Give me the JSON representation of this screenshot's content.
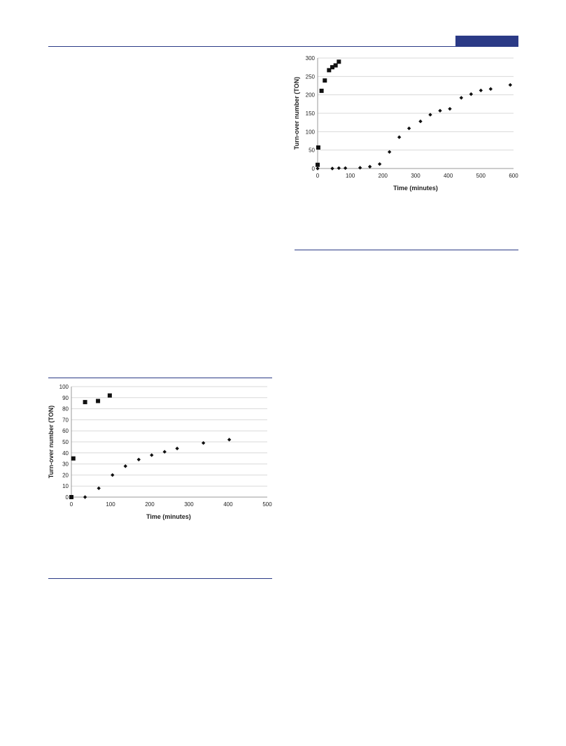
{
  "colors": {
    "accent": "#2b3a86",
    "grid": "#d9d9d9",
    "marker": "#111111"
  },
  "chart_data": [
    {
      "type": "scatter",
      "xlabel": "Time (minutes)",
      "ylabel": "Turn-over number (TON)",
      "xlim": [
        0,
        600
      ],
      "ylim": [
        0,
        300
      ],
      "xticks": [
        0,
        100,
        200,
        300,
        400,
        500,
        600
      ],
      "yticks": [
        0,
        50,
        100,
        150,
        200,
        250,
        300
      ],
      "grid": true,
      "series": [
        {
          "marker": "square",
          "x": [
            0,
            2,
            12,
            22,
            35,
            45,
            55,
            65
          ],
          "y": [
            10,
            57,
            211,
            239,
            267,
            275,
            280,
            290
          ]
        },
        {
          "marker": "diamond",
          "x": [
            0,
            45,
            65,
            85,
            130,
            160,
            190,
            220,
            250,
            280,
            315,
            345,
            375,
            405,
            440,
            470,
            500,
            530,
            590
          ],
          "y": [
            0,
            0,
            1,
            1,
            2,
            5,
            12,
            45,
            85,
            109,
            128,
            146,
            157,
            162,
            192,
            202,
            212,
            216,
            227
          ]
        }
      ]
    },
    {
      "type": "scatter",
      "xlabel": "Time (minutes)",
      "ylabel": "Turn-over number (TON)",
      "xlim": [
        0,
        500
      ],
      "ylim": [
        0,
        100
      ],
      "xticks": [
        0,
        100,
        200,
        300,
        400,
        500
      ],
      "yticks": [
        0,
        10,
        20,
        30,
        40,
        50,
        60,
        70,
        80,
        90,
        100
      ],
      "grid": true,
      "series": [
        {
          "marker": "square",
          "x": [
            0,
            5,
            35,
            68,
            98
          ],
          "y": [
            0,
            35,
            86,
            87,
            92
          ]
        },
        {
          "marker": "diamond",
          "x": [
            35,
            70,
            105,
            138,
            172,
            205,
            238,
            270,
            337,
            403
          ],
          "y": [
            0,
            8,
            20,
            28,
            34,
            38,
            41,
            44,
            49,
            52
          ]
        }
      ]
    }
  ]
}
